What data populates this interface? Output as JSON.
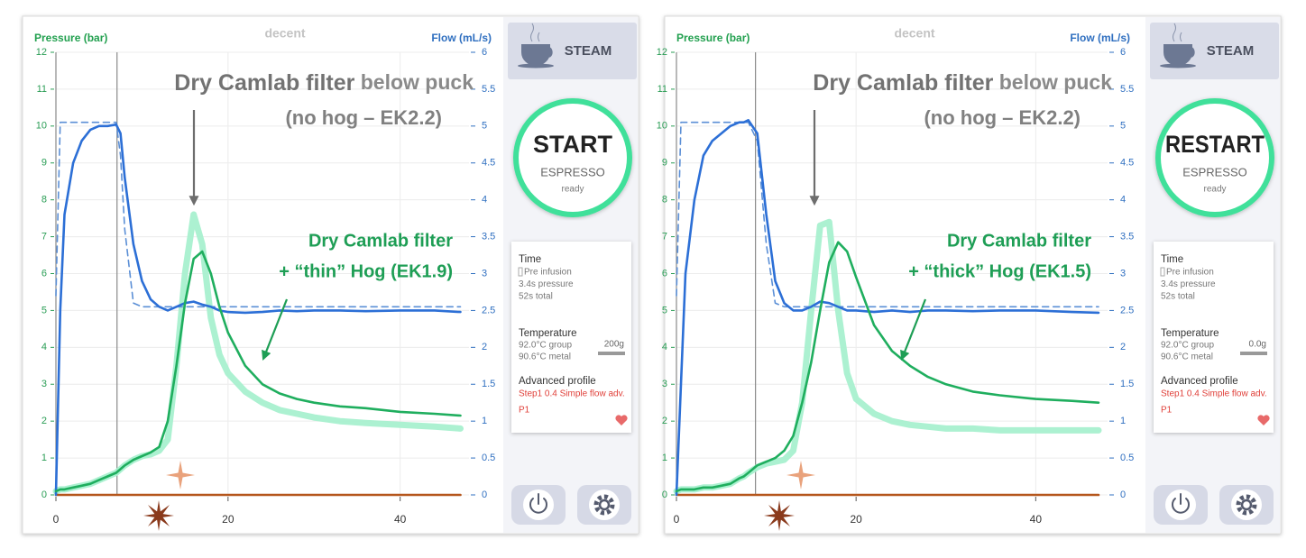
{
  "chart_data": [
    {
      "type": "line",
      "logo": "decent",
      "y_label": "Pressure (bar)",
      "y2_label": "Flow (mL/s)",
      "title_bold": "Dry Camlab filter",
      "title_rest": " below puck",
      "subtitle": "(no hog – EK2.2)",
      "note": [
        "Dry Camlab filter",
        "+ “thin” Hog (EK1.9)"
      ],
      "xlim": [
        0,
        48
      ],
      "xticks": [
        0,
        20,
        40
      ],
      "ylim": [
        0,
        12
      ],
      "yticks": [
        0,
        1,
        2,
        3,
        4,
        5,
        6,
        7,
        8,
        9,
        10,
        11,
        12
      ],
      "y2lim": [
        0,
        6
      ],
      "y2ticks": [
        0,
        0.5,
        1,
        1.5,
        2,
        2.5,
        3,
        3.5,
        4,
        4.5,
        5,
        5.5,
        6
      ],
      "grid": true,
      "phase_lines": [
        0,
        7.1
      ],
      "x": [
        0,
        0.5,
        1,
        2,
        3,
        4,
        5,
        6,
        7,
        7.5,
        8,
        9,
        10,
        11,
        12,
        13,
        14,
        15,
        16,
        17,
        18,
        19,
        20,
        22,
        24,
        26,
        28,
        30,
        33,
        36,
        40,
        44,
        47
      ],
      "series": [
        {
          "color": "#a8f0cf",
          "line_style": "thick",
          "values": [
            0.1,
            0.15,
            0.15,
            0.2,
            0.25,
            0.3,
            0.4,
            0.5,
            0.6,
            0.7,
            0.8,
            0.95,
            1.05,
            1.1,
            1.2,
            1.5,
            3.5,
            6.0,
            7.6,
            6.8,
            4.8,
            3.8,
            3.3,
            2.8,
            2.5,
            2.3,
            2.2,
            2.1,
            2.0,
            1.95,
            1.9,
            1.85,
            1.8
          ]
        },
        {
          "color": "#b5561c",
          "axis": "y2",
          "line_style": "solid",
          "values": [
            0,
            0,
            0,
            0,
            0,
            0,
            0,
            0,
            0,
            0,
            0,
            0,
            0,
            0,
            0,
            0,
            0,
            0,
            0,
            0,
            0,
            0,
            0,
            0,
            0,
            0,
            0,
            0,
            0,
            0,
            0,
            0,
            0
          ]
        },
        {
          "color": "#5b8fd6",
          "axis": "y2",
          "line_style": "dashed",
          "values": [
            2.7,
            5.05,
            5.05,
            5.05,
            5.05,
            5.05,
            5.05,
            5.05,
            5.05,
            4.6,
            3.6,
            2.6,
            2.55,
            2.55,
            2.55,
            2.55,
            2.55,
            2.55,
            2.55,
            2.55,
            2.55,
            2.55,
            2.55,
            2.55,
            2.55,
            2.55,
            2.55,
            2.55,
            2.55,
            2.55,
            2.55,
            2.55,
            2.55
          ]
        },
        {
          "color": "#2c6fd6",
          "axis": "y2",
          "line_style": "solid",
          "values": [
            0,
            2.5,
            3.8,
            4.5,
            4.8,
            4.95,
            5.0,
            5.0,
            5.02,
            4.9,
            4.3,
            3.4,
            2.9,
            2.65,
            2.55,
            2.5,
            2.55,
            2.6,
            2.62,
            2.58,
            2.55,
            2.5,
            2.48,
            2.47,
            2.48,
            2.5,
            2.49,
            2.5,
            2.5,
            2.49,
            2.5,
            2.5,
            2.48
          ]
        },
        {
          "color": "#1fae5e",
          "line_style": "solid",
          "values": [
            0.1,
            0.15,
            0.15,
            0.2,
            0.25,
            0.3,
            0.4,
            0.5,
            0.6,
            0.7,
            0.8,
            0.95,
            1.05,
            1.15,
            1.3,
            2.0,
            3.5,
            5.2,
            6.4,
            6.6,
            6.0,
            5.1,
            4.4,
            3.5,
            3.0,
            2.75,
            2.6,
            2.5,
            2.4,
            2.35,
            2.25,
            2.2,
            2.15
          ]
        }
      ]
    },
    {
      "type": "line",
      "logo": "decent",
      "y_label": "Pressure (bar)",
      "y2_label": "Flow (mL/s)",
      "title_bold": "Dry Camlab filter",
      "title_rest": " below puck",
      "subtitle": "(no hog – EK2.2)",
      "note": [
        "Dry Camlab filter",
        "+ “thick” Hog (EK1.5)"
      ],
      "xlim": [
        0,
        48
      ],
      "xticks": [
        0,
        20,
        40
      ],
      "ylim": [
        0,
        12
      ],
      "yticks": [
        0,
        1,
        2,
        3,
        4,
        5,
        6,
        7,
        8,
        9,
        10,
        11,
        12
      ],
      "y2lim": [
        0,
        6
      ],
      "y2ticks": [
        0,
        0.5,
        1,
        1.5,
        2,
        2.5,
        3,
        3.5,
        4,
        4.5,
        5,
        5.5,
        6
      ],
      "grid": true,
      "phase_lines": [
        0,
        8.8
      ],
      "x": [
        0,
        0.5,
        1,
        2,
        3,
        4,
        5,
        6,
        7,
        7.5,
        8,
        9,
        10,
        11,
        12,
        13,
        14,
        15,
        16,
        17,
        18,
        19,
        20,
        22,
        24,
        26,
        28,
        30,
        33,
        36,
        40,
        44,
        47
      ],
      "series": [
        {
          "color": "#a8f0cf",
          "line_style": "thick",
          "values": [
            0.1,
            0.15,
            0.15,
            0.15,
            0.2,
            0.2,
            0.25,
            0.3,
            0.45,
            0.5,
            0.6,
            0.75,
            0.85,
            0.9,
            0.95,
            1.2,
            2.5,
            5.0,
            7.3,
            7.4,
            5.0,
            3.3,
            2.6,
            2.2,
            2.0,
            1.9,
            1.85,
            1.8,
            1.8,
            1.75,
            1.75,
            1.75,
            1.75
          ]
        },
        {
          "color": "#b5561c",
          "axis": "y2",
          "line_style": "solid",
          "values": [
            0,
            0,
            0,
            0,
            0,
            0,
            0,
            0,
            0,
            0,
            0,
            0,
            0,
            0,
            0,
            0,
            0,
            0,
            0,
            0,
            0,
            0,
            0,
            0,
            0,
            0,
            0,
            0,
            0,
            0,
            0,
            0,
            0
          ]
        },
        {
          "color": "#5b8fd6",
          "axis": "y2",
          "line_style": "dashed",
          "values": [
            2.7,
            5.05,
            5.05,
            5.05,
            5.05,
            5.05,
            5.05,
            5.05,
            5.05,
            5.05,
            5.05,
            4.8,
            3.4,
            2.6,
            2.55,
            2.55,
            2.55,
            2.55,
            2.55,
            2.55,
            2.55,
            2.55,
            2.55,
            2.55,
            2.55,
            2.55,
            2.55,
            2.55,
            2.55,
            2.55,
            2.55,
            2.55,
            2.55
          ]
        },
        {
          "color": "#2c6fd6",
          "axis": "y2",
          "line_style": "solid",
          "values": [
            0,
            1.5,
            3.0,
            4.0,
            4.6,
            4.8,
            4.9,
            5.0,
            5.05,
            5.05,
            5.08,
            4.9,
            3.8,
            2.9,
            2.6,
            2.5,
            2.5,
            2.55,
            2.62,
            2.6,
            2.55,
            2.5,
            2.5,
            2.48,
            2.5,
            2.48,
            2.5,
            2.5,
            2.49,
            2.5,
            2.5,
            2.48,
            2.47
          ]
        },
        {
          "color": "#1fae5e",
          "line_style": "solid",
          "values": [
            0.1,
            0.15,
            0.15,
            0.15,
            0.2,
            0.2,
            0.25,
            0.3,
            0.45,
            0.5,
            0.6,
            0.8,
            0.9,
            1.0,
            1.2,
            1.6,
            2.5,
            3.6,
            5.0,
            6.3,
            6.85,
            6.6,
            5.9,
            4.6,
            3.9,
            3.5,
            3.2,
            3.0,
            2.8,
            2.7,
            2.6,
            2.55,
            2.5
          ]
        }
      ]
    }
  ],
  "panels": [
    {
      "steam": "STEAM",
      "button": "START",
      "mode": "ESPRESSO",
      "state": "ready",
      "time": {
        "heading": "Time",
        "lines": [
          "Pre infusion",
          "3.4s pressure",
          "52s total"
        ]
      },
      "temperature": {
        "heading": "Temperature",
        "lines": [
          "92.0°C group",
          "90.6°C metal"
        ],
        "scale": "200g"
      },
      "profile": {
        "heading": "Advanced profile",
        "lines": [
          "Step1 0.4 Simple flow adv.",
          "P1"
        ]
      }
    },
    {
      "steam": "STEAM",
      "button": "RESTART",
      "mode": "ESPRESSO",
      "state": "ready",
      "time": {
        "heading": "Time",
        "lines": [
          "Pre infusion",
          "3.4s pressure",
          "52s total"
        ]
      },
      "temperature": {
        "heading": "Temperature",
        "lines": [
          "92.0°C group",
          "90.6°C metal"
        ],
        "scale": "0.0g"
      },
      "profile": {
        "heading": "Advanced profile",
        "lines": [
          "Step1 0.4 Simple flow adv.",
          "P1"
        ]
      }
    }
  ]
}
